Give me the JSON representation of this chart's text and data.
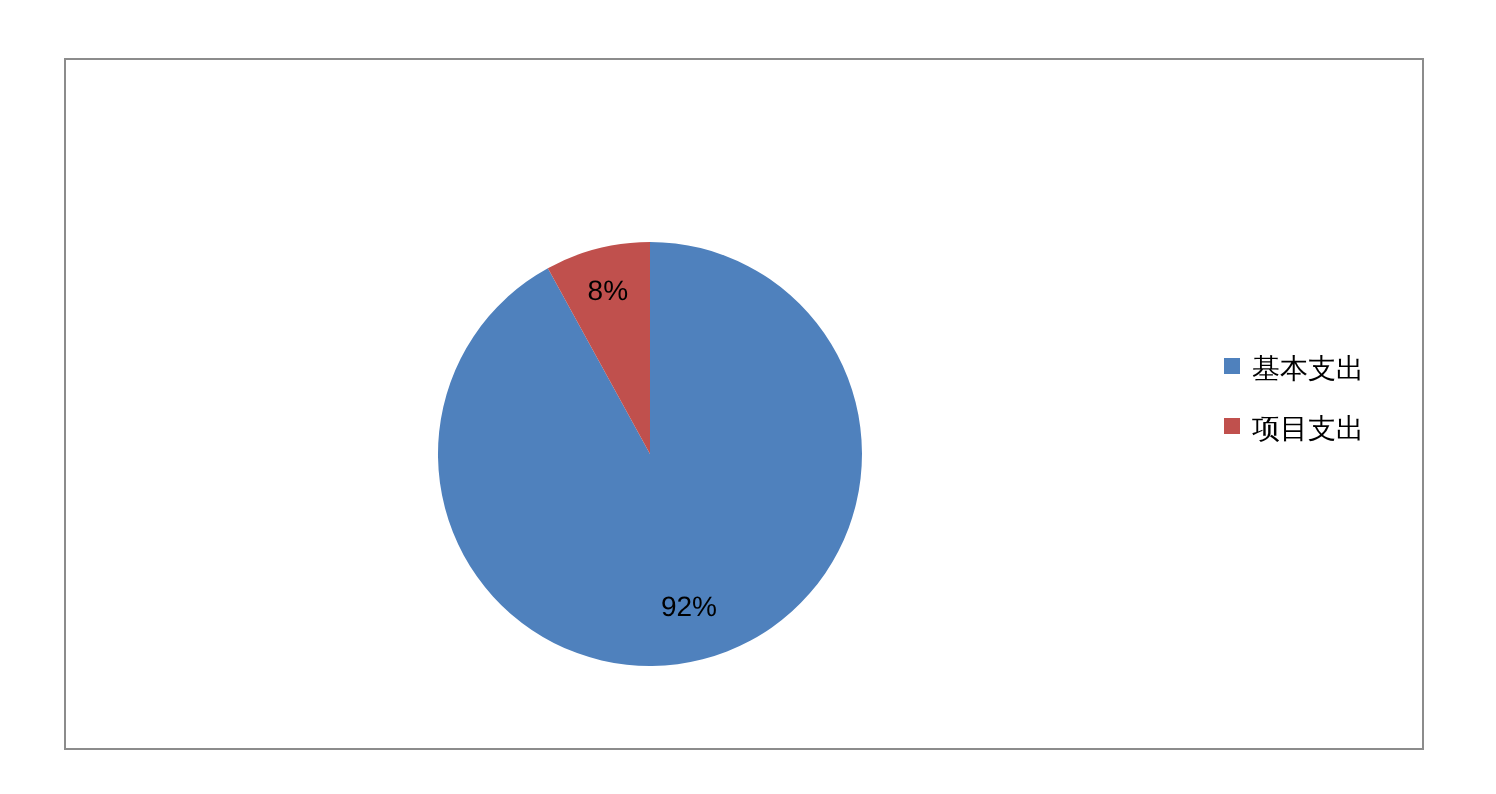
{
  "chart_data": {
    "type": "pie",
    "categories": [
      "基本支出",
      "项目支出"
    ],
    "values": [
      92,
      8
    ],
    "colors": [
      "#4f81bd",
      "#c0504d"
    ],
    "value_labels": [
      "92%",
      "8%"
    ],
    "legend": "right"
  }
}
